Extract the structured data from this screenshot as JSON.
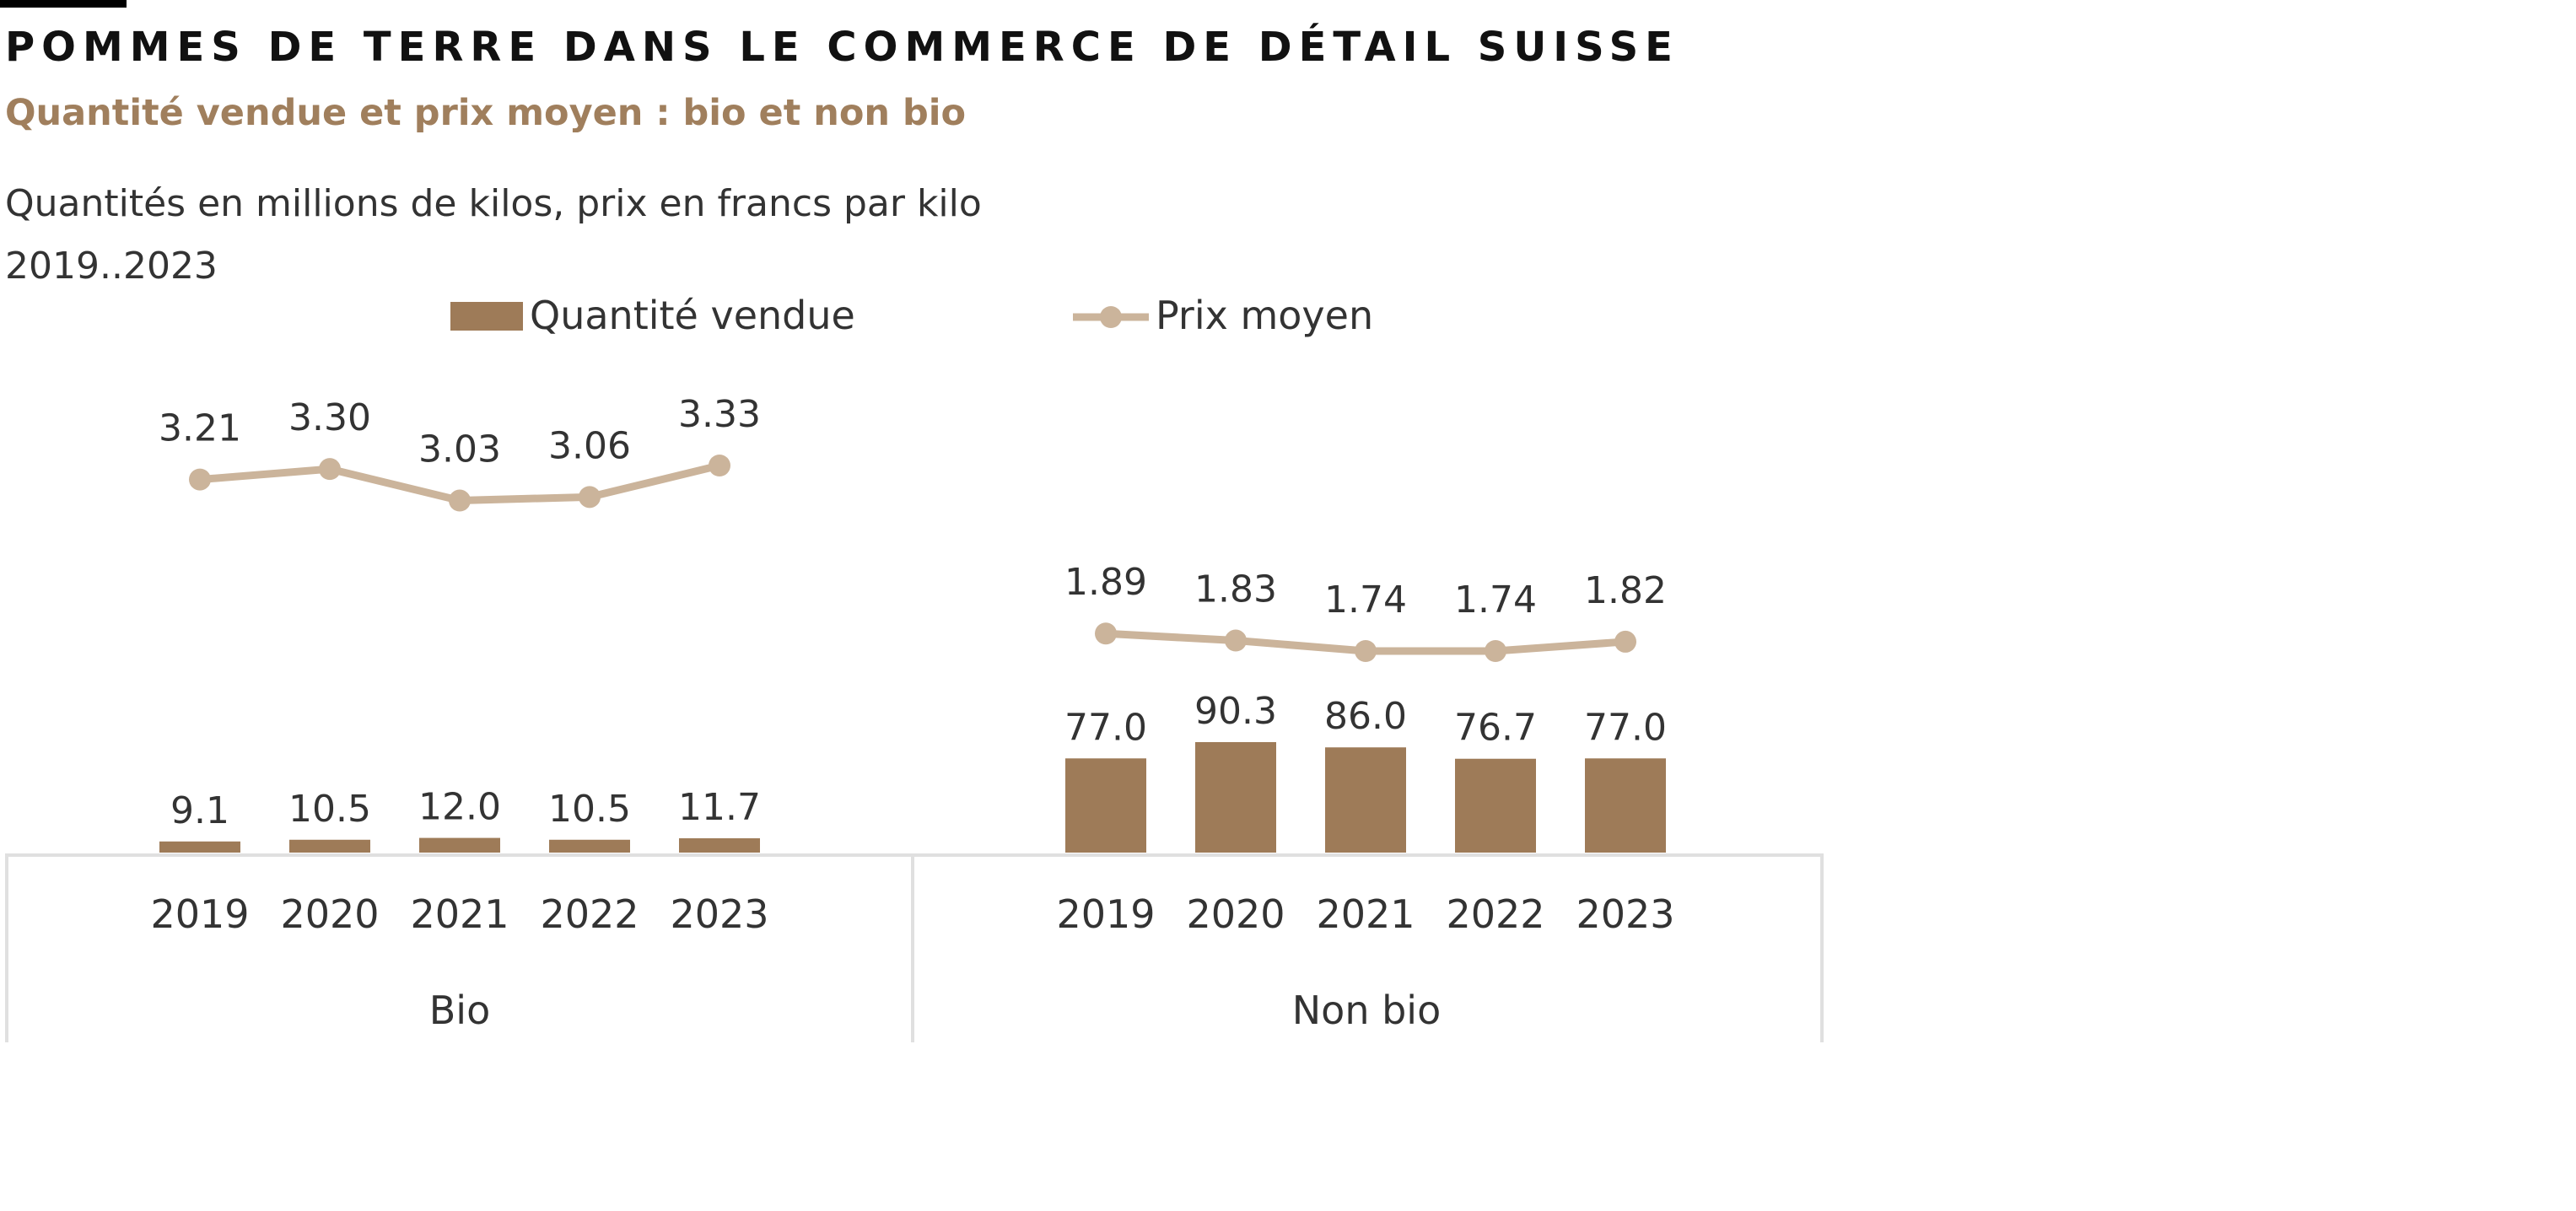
{
  "title": "POMMES DE TERRE DANS LE COMMERCE DE DÉTAIL SUISSE",
  "subtitle": "Quantité vendue et prix moyen : bio et non bio",
  "note": "Quantités en millions de kilos, prix en francs par kilo",
  "period": "2019..2023",
  "colors": {
    "bar": "#9e7b58",
    "line": "#cbb49b",
    "title_bar": "#000000",
    "axis": "#e0e0e0",
    "subtitle": "#a07f5d"
  },
  "chart_data": {
    "type": "bar+line",
    "title": "POMMES DE TERRE DANS LE COMMERCE DE DÉTAIL SUISSE",
    "subtitle": "Quantité vendue et prix moyen : bio et non bio",
    "legend": {
      "position": "top",
      "entries": [
        "Quantité vendue",
        "Prix moyen"
      ]
    },
    "categories": [
      "2019",
      "2020",
      "2021",
      "2022",
      "2023"
    ],
    "groups": [
      {
        "name": "Bio",
        "series": [
          {
            "name": "Quantité vendue",
            "type": "bar",
            "values": [
              9.1,
              10.5,
              12.0,
              10.5,
              11.7
            ],
            "labels": [
              "9.1",
              "10.5",
              "12.0",
              "10.5",
              "11.7"
            ]
          },
          {
            "name": "Prix moyen",
            "type": "line",
            "values": [
              3.21,
              3.3,
              3.03,
              3.06,
              3.33
            ],
            "labels": [
              "3.21",
              "3.30",
              "3.03",
              "3.06",
              "3.33"
            ]
          }
        ]
      },
      {
        "name": "Non bio",
        "series": [
          {
            "name": "Quantité vendue",
            "type": "bar",
            "values": [
              77.0,
              90.3,
              86.0,
              76.7,
              77.0
            ],
            "labels": [
              "77.0",
              "90.3",
              "86.0",
              "76.7",
              "77.0"
            ]
          },
          {
            "name": "Prix moyen",
            "type": "line",
            "values": [
              1.89,
              1.83,
              1.74,
              1.74,
              1.82
            ],
            "labels": [
              "1.89",
              "1.83",
              "1.74",
              "1.74",
              "1.82"
            ]
          }
        ]
      }
    ],
    "ylim_bar": [
      0,
      90.3
    ],
    "ylim_price": [
      1.74,
      3.33
    ],
    "grid": false
  }
}
